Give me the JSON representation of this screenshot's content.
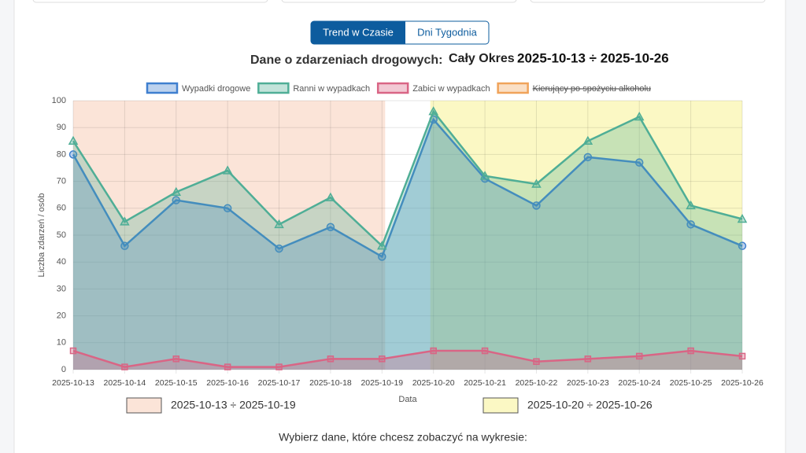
{
  "tabs": [
    "Trend w Czasie",
    "Dni Tygodnia"
  ],
  "chart_data": {
    "type": "line",
    "title": "Dane o zdarzeniach drogowych:",
    "subtitle": "Cały Okres",
    "range_label": "2025-10-13 ÷ 2025-10-26",
    "x_label": "Data",
    "y_label": "Liczba zdarzeń / osób",
    "categories": [
      "2025-10-13",
      "2025-10-14",
      "2025-10-15",
      "2025-10-16",
      "2025-10-17",
      "2025-10-18",
      "2025-10-19",
      "2025-10-20",
      "2025-10-21",
      "2025-10-22",
      "2025-10-23",
      "2025-10-24",
      "2025-10-25",
      "2025-10-26"
    ],
    "series": [
      {
        "name": "Wypadki drogowe",
        "color": "#3f7fcf",
        "marker": "circle",
        "values": [
          80,
          46,
          63,
          60,
          45,
          53,
          42,
          93,
          71,
          61,
          79,
          77,
          54,
          46
        ]
      },
      {
        "name": "Ranni w wypadkach",
        "color": "#4fae96",
        "marker": "triangle",
        "values": [
          85,
          55,
          66,
          74,
          54,
          64,
          46,
          96,
          72,
          69,
          85,
          94,
          61,
          56
        ]
      },
      {
        "name": "Zabici w wypadkach",
        "color": "#d96585",
        "marker": "square",
        "values": [
          7,
          1,
          4,
          1,
          1,
          4,
          4,
          7,
          7,
          3,
          4,
          5,
          7,
          5
        ]
      },
      {
        "name": "Kierujący po spożyciu alkoholu",
        "color": "#f0a35a",
        "hidden": true,
        "values": [
          null,
          null,
          null,
          null,
          null,
          null,
          null,
          null,
          null,
          null,
          null,
          null,
          null,
          null
        ]
      }
    ],
    "periods": [
      {
        "label": "2025-10-13 ÷ 2025-10-19",
        "from": "2025-10-13",
        "to": "2025-10-19",
        "color": "#fbe4d8"
      },
      {
        "label": "2025-10-20 ÷ 2025-10-26",
        "from": "2025-10-20",
        "to": "2025-10-26",
        "color": "#fbf8c4"
      }
    ],
    "ylim": [
      0,
      100
    ],
    "yticks": [
      0,
      10,
      20,
      30,
      40,
      50,
      60,
      70,
      80,
      90,
      100
    ],
    "grid": true
  },
  "footer": "Wybierz dane, które chcesz zobaczyć na wykresie:"
}
